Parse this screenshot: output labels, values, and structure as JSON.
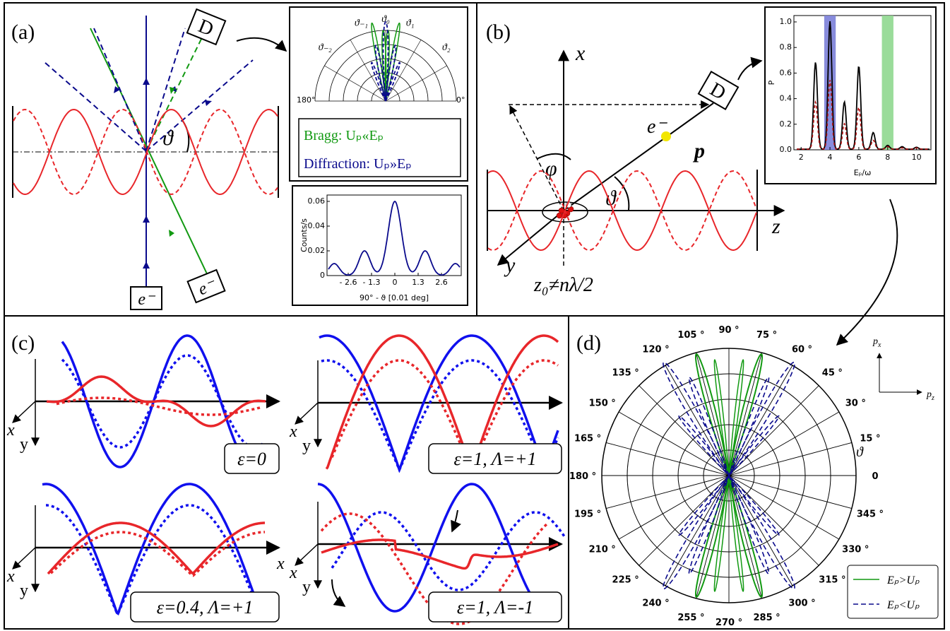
{
  "panel_a": {
    "label": "(a)",
    "detector": "D",
    "electron_bottom": "e⁻",
    "electron_side": "e⁻",
    "angle": "ϑ",
    "polar_inset": {
      "angle_labels": [
        "ϑ₋₂",
        "ϑ₋₁",
        "ϑ₀",
        "ϑ₁",
        "ϑ₂"
      ],
      "edge_left": "180°",
      "edge_right": "0°"
    },
    "legend": {
      "bragg": "Bragg: Uₚ«Eₚ",
      "diffraction": "Diffraction: Uₚ»Eₚ"
    },
    "counts_inset": {
      "ylabel": "Counts/s",
      "yticks": [
        "0",
        "0.02",
        "0.04",
        "0.06"
      ],
      "xticks": [
        "- 2.6",
        "- 1.3",
        "0",
        "1.3",
        "2.6"
      ],
      "xlabel": "90° -  ϑ [0.01 deg]"
    }
  },
  "panel_b": {
    "label": "(b)",
    "axis_x": "x",
    "axis_y": "y",
    "axis_z": "z",
    "detector": "D",
    "electron": "e⁻",
    "momentum": "p",
    "azimuth": "φ",
    "angle": "ϑ",
    "offset": "z₀≠nλ/2",
    "spectrum_inset": {
      "ylabel": "P",
      "yticks": [
        "0.0",
        "0.2",
        "0.4",
        "0.6",
        "0.8",
        "1.0"
      ],
      "xticks": [
        "2",
        "4",
        "6",
        "8",
        "10"
      ],
      "xlabel": "Eₚ/ω"
    }
  },
  "panel_c": {
    "label": "(c)",
    "subplots": [
      {
        "axis_x": "x",
        "axis_y": "y",
        "label": "ε=0"
      },
      {
        "axis_x": "x",
        "axis_y": "y",
        "label": "ε=1, Λ=+1"
      },
      {
        "axis_x": "x",
        "axis_y": "y",
        "axis_far": "x",
        "label": "ε=0.4, Λ=+1"
      },
      {
        "axis_x": "x",
        "axis_y": "y",
        "label": "ε=1, Λ=-1"
      }
    ]
  },
  "panel_d": {
    "label": "(d)",
    "angle_labels": [
      "0",
      "15 °",
      "30 °",
      "45 °",
      "60 °",
      "75 °",
      "90 °",
      "105 °",
      "120 °",
      "135 °",
      "150 °",
      "165 °",
      "180 °",
      "195 °",
      "210 °",
      "225 °",
      "240 °",
      "255 °",
      "270 °",
      "285 °",
      "300 °",
      "315 °",
      "330 °",
      "345 °"
    ],
    "angle_symbol": "ϑ",
    "axis_vertical": {
      "base": "p",
      "sub": "x"
    },
    "axis_horizontal": {
      "base": "p",
      "sub": "z"
    },
    "legend": [
      "Eₚ>Uₚ",
      "Eₚ<Uₚ"
    ]
  }
}
